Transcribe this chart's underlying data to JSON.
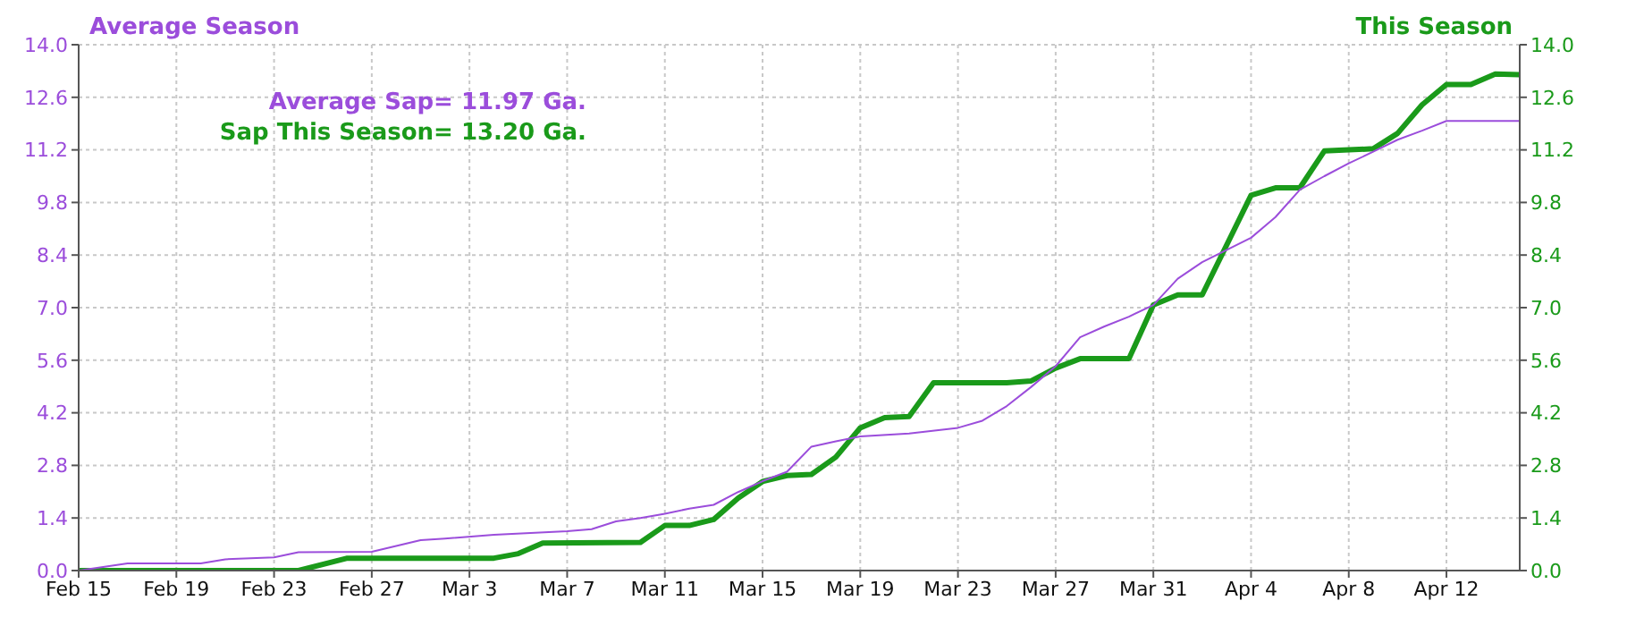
{
  "chart_data": {
    "type": "line",
    "ylabel": "Average Season",
    "y2label": "This Season",
    "annotations": [
      "Average Sap= 11.97 Ga.",
      "Sap This Season= 13.20 Ga."
    ],
    "xlim": [
      "--02-15",
      "--04-15"
    ],
    "xticks": [
      {
        "value": "--02-15",
        "label": "Feb 15"
      },
      {
        "value": "--02-19",
        "label": "Feb 19"
      },
      {
        "value": "--02-23",
        "label": "Feb 23"
      },
      {
        "value": "--02-27",
        "label": "Feb 27"
      },
      {
        "value": "--03-03",
        "label": "Mar 3"
      },
      {
        "value": "--03-07",
        "label": "Mar 7"
      },
      {
        "value": "--03-11",
        "label": "Mar 11"
      },
      {
        "value": "--03-15",
        "label": "Mar 15"
      },
      {
        "value": "--03-19",
        "label": "Mar 19"
      },
      {
        "value": "--03-23",
        "label": "Mar 23"
      },
      {
        "value": "--03-27",
        "label": "Mar 27"
      },
      {
        "value": "--03-31",
        "label": "Mar 31"
      },
      {
        "value": "--04-04",
        "label": "Apr 4"
      },
      {
        "value": "--04-08",
        "label": "Apr 8"
      },
      {
        "value": "--04-12",
        "label": "Apr 12"
      }
    ],
    "ylim": [
      0,
      14
    ],
    "yticks": [
      {
        "value": 0,
        "label": "0.0"
      },
      1.4,
      2.8,
      4.2,
      5.6,
      {
        "value": 7,
        "label": "7.0"
      },
      8.4,
      9.8,
      11.2,
      12.6,
      {
        "value": 14,
        "label": "14.0"
      }
    ],
    "y2lim": [
      0,
      14
    ],
    "y2ticks": [
      {
        "value": 0,
        "label": "0.0"
      },
      1.4,
      2.8,
      4.2,
      5.6,
      {
        "value": 7,
        "label": "7.0"
      },
      8.4,
      9.8,
      11.2,
      12.6,
      {
        "value": 14,
        "label": "14.0"
      }
    ],
    "grid": true,
    "marker": "none",
    "line_style": "solid",
    "series": [
      {
        "color": "#9b4ddb",
        "x": [
          "--02-15",
          "--02-17",
          "--02-20",
          "--02-21",
          "--02-23",
          "--02-24",
          "--02-27",
          "--03-01",
          "--03-02",
          "--03-04",
          "--03-07",
          "--03-08",
          "--03-09",
          "--03-10",
          "--03-11",
          "--03-12",
          "--03-13",
          "--03-14",
          "--03-15",
          "--03-16",
          "--03-17",
          "--03-18",
          "--03-19",
          "--03-21",
          "--03-23",
          "--03-24",
          "--03-25",
          "--03-26",
          "--03-27",
          "--03-28",
          "--03-29",
          "--03-30",
          "--03-31",
          "--04-01",
          "--04-02",
          "--04-04",
          "--04-05",
          "--04-06",
          "--04-07",
          "--04-08",
          "--04-09",
          "--04-10",
          "--04-11",
          "--04-12",
          "--04-15"
        ],
        "values": [
          0,
          0.19,
          0.19,
          0.3,
          0.35,
          0.49,
          0.5,
          0.81,
          0.85,
          0.95,
          1.05,
          1.1,
          1.31,
          1.4,
          1.51,
          1.65,
          1.75,
          2.09,
          2.38,
          2.63,
          3.3,
          3.44,
          3.57,
          3.65,
          3.8,
          3.99,
          4.38,
          4.89,
          5.44,
          6.21,
          6.5,
          6.76,
          7.07,
          7.77,
          8.21,
          8.86,
          9.41,
          10.14,
          10.5,
          10.84,
          11.15,
          11.47,
          11.71,
          11.97,
          11.97
        ]
      },
      {
        "color": "#1a9a1a",
        "axis": "y2",
        "x": [
          "--02-15",
          "--02-24",
          "--02-26",
          "--03-04",
          "--03-05",
          "--03-06",
          "--03-10",
          "--03-11",
          "--03-12",
          "--03-13",
          "--03-14",
          "--03-15",
          "--03-16",
          "--03-17",
          "--03-18",
          "--03-19",
          "--03-20",
          "--03-21",
          "--03-22",
          "--03-25",
          "--03-26",
          "--03-27",
          "--03-28",
          "--03-30",
          "--03-31",
          "--04-01",
          "--04-02",
          "--04-04",
          "--04-05",
          "--04-06",
          "--04-07",
          "--04-08",
          "--04-09",
          "--04-10",
          "--04-11",
          "--04-12",
          "--04-13",
          "--04-14",
          "--04-15"
        ],
        "values": [
          0,
          0,
          0.33,
          0.33,
          0.45,
          0.73,
          0.75,
          1.2,
          1.2,
          1.36,
          1.93,
          2.37,
          2.53,
          2.56,
          3.02,
          3.8,
          4.07,
          4.1,
          5.0,
          5.0,
          5.05,
          5.39,
          5.64,
          5.64,
          7.07,
          7.34,
          7.34,
          9.99,
          10.19,
          10.19,
          11.17,
          11.2,
          11.23,
          11.64,
          12.4,
          12.94,
          12.94,
          13.22,
          13.2
        ]
      }
    ]
  }
}
